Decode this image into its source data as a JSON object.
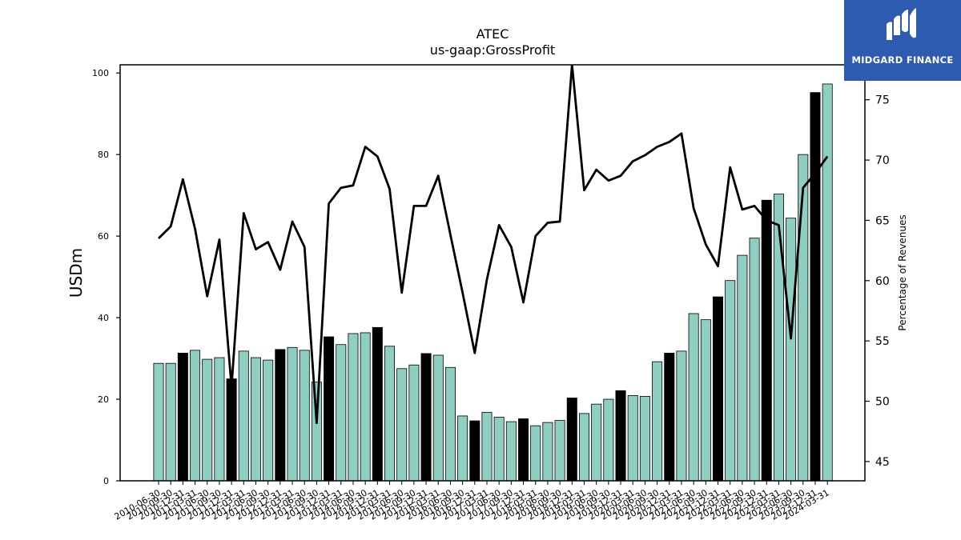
{
  "chart_data": {
    "type": "bar",
    "title": "ATEC",
    "subtitle": "us-gaap:GrossProfit",
    "ylabel": "USDm",
    "y2label": "Percentage of Revenues",
    "ylim": [
      0,
      102
    ],
    "y2lim": [
      43.4,
      77.9
    ],
    "yticks": [
      0,
      20,
      40,
      60,
      80,
      100
    ],
    "y2ticks": [
      45,
      50,
      55,
      60,
      65,
      70,
      75
    ],
    "colors": {
      "bar": "#8ecfc2",
      "bar_highlight": "#000000",
      "line": "#000000"
    },
    "categories": [
      "2010-06-30",
      "2010-09-30",
      "2010-12-31",
      "2011-03-31",
      "2011-06-30",
      "2011-09-30",
      "2011-12-31",
      "2012-03-31",
      "2012-06-30",
      "2012-09-30",
      "2012-12-31",
      "2013-03-31",
      "2013-06-30",
      "2013-09-30",
      "2013-12-31",
      "2014-03-31",
      "2014-06-30",
      "2014-09-30",
      "2014-12-31",
      "2015-03-31",
      "2015-06-30",
      "2015-09-30",
      "2015-12-31",
      "2016-03-31",
      "2016-06-30",
      "2016-09-30",
      "2016-12-31",
      "2017-03-31",
      "2017-06-30",
      "2017-09-30",
      "2017-12-31",
      "2018-03-31",
      "2018-06-30",
      "2018-09-30",
      "2018-12-31",
      "2019-03-31",
      "2019-06-30",
      "2019-09-30",
      "2019-12-31",
      "2020-03-31",
      "2020-06-30",
      "2020-09-30",
      "2020-12-31",
      "2021-03-31",
      "2021-06-30",
      "2021-09-30",
      "2021-12-31",
      "2022-03-31",
      "2022-06-30",
      "2022-09-30",
      "2022-12-31",
      "2023-03-31",
      "2023-06-30",
      "2023-09-30",
      "2023-12-31",
      "2024-03-31"
    ],
    "series": [
      {
        "kind": "bar",
        "values": [
          28.8,
          28.8,
          31.3,
          32.0,
          29.8,
          30.2,
          25.0,
          31.8,
          30.2,
          29.6,
          32.2,
          32.7,
          32.0,
          24.2,
          35.3,
          33.4,
          36.1,
          36.3,
          37.6,
          33.0,
          27.5,
          28.4,
          31.2,
          30.8,
          27.8,
          15.9,
          14.7,
          16.8,
          15.6,
          14.5,
          15.2,
          13.5,
          14.3,
          14.8,
          20.3,
          16.5,
          18.8,
          20.0,
          22.1,
          20.9,
          20.7,
          29.2,
          31.3,
          31.8,
          41.0,
          39.5,
          45.1,
          49.1,
          55.3,
          59.5,
          68.8,
          70.3,
          64.4,
          80.0,
          95.2,
          97.3
        ],
        "highlight": [
          false,
          false,
          true,
          false,
          false,
          false,
          true,
          false,
          false,
          false,
          true,
          false,
          false,
          false,
          true,
          false,
          false,
          false,
          true,
          false,
          false,
          false,
          true,
          false,
          false,
          false,
          true,
          false,
          false,
          false,
          true,
          false,
          false,
          false,
          true,
          false,
          false,
          false,
          true,
          false,
          false,
          false,
          true,
          false,
          false,
          false,
          true,
          false,
          false,
          false,
          true,
          false,
          false,
          false,
          true,
          false
        ]
      },
      {
        "kind": "line",
        "axis": "right",
        "values": [
          63.5,
          64.5,
          68.4,
          64.3,
          58.7,
          63.4,
          51.2,
          65.6,
          62.6,
          63.2,
          60.9,
          64.9,
          62.8,
          48.2,
          66.4,
          67.7,
          67.9,
          71.1,
          70.3,
          67.6,
          59.0,
          66.2,
          66.2,
          68.7,
          63.8,
          59.0,
          54.0,
          60.1,
          64.6,
          62.8,
          58.2,
          63.7,
          64.8,
          64.9,
          77.9,
          67.5,
          69.2,
          68.3,
          68.7,
          69.9,
          70.4,
          71.1,
          71.5,
          72.2,
          66.0,
          63.0,
          61.2,
          69.4,
          65.9,
          66.2,
          65.0,
          64.6,
          55.2,
          67.7,
          68.9,
          70.3
        ]
      }
    ]
  },
  "logo": {
    "text": "MIDGARD FINANCE"
  }
}
